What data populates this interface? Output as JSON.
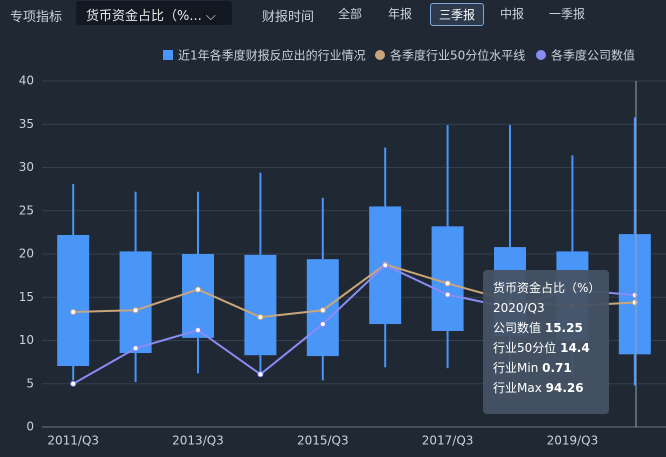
{
  "toolbar": {
    "indicator_label": "专项指标",
    "indicator_value": "货币资金占比（%...",
    "period_label": "财报时间",
    "periods": [
      "全部",
      "年报",
      "三季报",
      "中报",
      "一季报"
    ],
    "selected_period": 2
  },
  "chart_data": {
    "type": "boxplot",
    "categories": [
      "2011/Q3",
      null,
      "2013/Q3",
      null,
      "2015/Q3",
      null,
      "2017/Q3",
      null,
      "2019/Q3",
      null
    ],
    "ylim": [
      0,
      40
    ],
    "yticks": [
      0,
      5,
      10,
      15,
      20,
      25,
      30,
      35,
      40
    ],
    "grid": true,
    "series": [
      {
        "name": "近1年各季度财报反应出的行业情况",
        "color": "#4a95f8",
        "type": "box",
        "low": [
          5.4,
          5.2,
          6.2,
          6,
          5.4,
          6.9,
          6.8,
          6.3,
          6,
          4.8
        ],
        "q1": [
          7.05,
          8.55,
          10.3,
          8.3,
          8.2,
          11.9,
          11.1,
          10.5,
          10,
          8.4
        ],
        "q3": [
          22.2,
          20.3,
          20,
          19.9,
          19.4,
          25.5,
          23.2,
          20.8,
          20.3,
          22.3
        ],
        "high": [
          28.1,
          27.2,
          27.2,
          29.4,
          26.5,
          32.3,
          34.9,
          34.9,
          31.4,
          35.8
        ]
      },
      {
        "name": "各季度行业50分位水平线",
        "color": "#c8a57a",
        "type": "line",
        "values": [
          13.3,
          13.5,
          15.9,
          12.7,
          13.5,
          18.8,
          16.6,
          14.6,
          14,
          14.4
        ]
      },
      {
        "name": "各季度公司数值",
        "color": "#8a8cf6",
        "type": "line",
        "values": [
          5,
          9.1,
          11.2,
          6.1,
          11.9,
          18.7,
          15.3,
          13.8,
          15.9,
          15.25
        ]
      }
    ]
  },
  "tooltip": {
    "title": "货币资金占比（%）",
    "category": "2020/Q3",
    "rows": [
      {
        "label": "公司数值",
        "value": 15.25
      },
      {
        "label": "行业50分位",
        "value": 14.4
      },
      {
        "label": "行业Min",
        "value": 0.71
      },
      {
        "label": "行业Max",
        "value": 94.26
      }
    ]
  }
}
